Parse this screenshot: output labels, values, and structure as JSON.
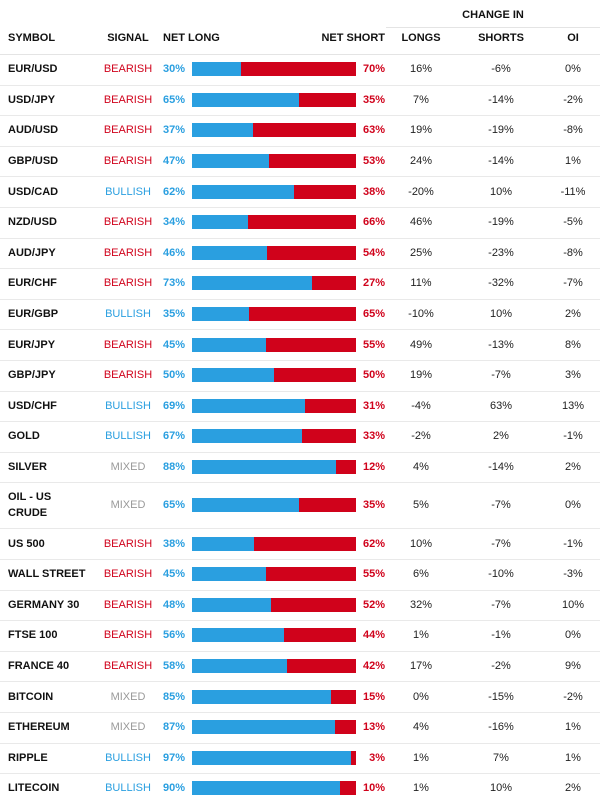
{
  "header": {
    "change_in": "CHANGE IN",
    "symbol": "SYMBOL",
    "signal": "SIGNAL",
    "net_long": "NET LONG",
    "net_short": "NET SHORT",
    "longs": "LONGS",
    "shorts": "SHORTS",
    "oi": "OI"
  },
  "colors": {
    "long": "#2a9fe0",
    "short": "#d0021b",
    "bearish": "#d0021b",
    "bullish": "#2a9fe0",
    "mixed": "#999999"
  },
  "rows": [
    {
      "symbol": "EUR/USD",
      "signal": "BEARISH",
      "net_long": "30%",
      "net_short": "70%",
      "long_fraction": 0.3,
      "longs": "16%",
      "shorts": "-6%",
      "oi": "0%"
    },
    {
      "symbol": "USD/JPY",
      "signal": "BEARISH",
      "net_long": "65%",
      "net_short": "35%",
      "long_fraction": 0.65,
      "longs": "7%",
      "shorts": "-14%",
      "oi": "-2%"
    },
    {
      "symbol": "AUD/USD",
      "signal": "BEARISH",
      "net_long": "37%",
      "net_short": "63%",
      "long_fraction": 0.37,
      "longs": "19%",
      "shorts": "-19%",
      "oi": "-8%"
    },
    {
      "symbol": "GBP/USD",
      "signal": "BEARISH",
      "net_long": "47%",
      "net_short": "53%",
      "long_fraction": 0.47,
      "longs": "24%",
      "shorts": "-14%",
      "oi": "1%"
    },
    {
      "symbol": "USD/CAD",
      "signal": "BULLISH",
      "net_long": "62%",
      "net_short": "38%",
      "long_fraction": 0.62,
      "longs": "-20%",
      "shorts": "10%",
      "oi": "-11%"
    },
    {
      "symbol": "NZD/USD",
      "signal": "BEARISH",
      "net_long": "34%",
      "net_short": "66%",
      "long_fraction": 0.34,
      "longs": "46%",
      "shorts": "-19%",
      "oi": "-5%"
    },
    {
      "symbol": "AUD/JPY",
      "signal": "BEARISH",
      "net_long": "46%",
      "net_short": "54%",
      "long_fraction": 0.46,
      "longs": "25%",
      "shorts": "-23%",
      "oi": "-8%"
    },
    {
      "symbol": "EUR/CHF",
      "signal": "BEARISH",
      "net_long": "73%",
      "net_short": "27%",
      "long_fraction": 0.73,
      "longs": "11%",
      "shorts": "-32%",
      "oi": "-7%"
    },
    {
      "symbol": "EUR/GBP",
      "signal": "BULLISH",
      "net_long": "35%",
      "net_short": "65%",
      "long_fraction": 0.35,
      "longs": "-10%",
      "shorts": "10%",
      "oi": "2%"
    },
    {
      "symbol": "EUR/JPY",
      "signal": "BEARISH",
      "net_long": "45%",
      "net_short": "55%",
      "long_fraction": 0.45,
      "longs": "49%",
      "shorts": "-13%",
      "oi": "8%"
    },
    {
      "symbol": "GBP/JPY",
      "signal": "BEARISH",
      "net_long": "50%",
      "net_short": "50%",
      "long_fraction": 0.5,
      "longs": "19%",
      "shorts": "-7%",
      "oi": "3%"
    },
    {
      "symbol": "USD/CHF",
      "signal": "BULLISH",
      "net_long": "69%",
      "net_short": "31%",
      "long_fraction": 0.69,
      "longs": "-4%",
      "shorts": "63%",
      "oi": "13%"
    },
    {
      "symbol": "GOLD",
      "signal": "BULLISH",
      "net_long": "67%",
      "net_short": "33%",
      "long_fraction": 0.67,
      "longs": "-2%",
      "shorts": "2%",
      "oi": "-1%"
    },
    {
      "symbol": "SILVER",
      "signal": "MIXED",
      "net_long": "88%",
      "net_short": "12%",
      "long_fraction": 0.88,
      "longs": "4%",
      "shorts": "-14%",
      "oi": "2%"
    },
    {
      "symbol": "OIL - US CRUDE",
      "signal": "MIXED",
      "net_long": "65%",
      "net_short": "35%",
      "long_fraction": 0.65,
      "longs": "5%",
      "shorts": "-7%",
      "oi": "0%"
    },
    {
      "symbol": "US 500",
      "signal": "BEARISH",
      "net_long": "38%",
      "net_short": "62%",
      "long_fraction": 0.38,
      "longs": "10%",
      "shorts": "-7%",
      "oi": "-1%"
    },
    {
      "symbol": "WALL STREET",
      "signal": "BEARISH",
      "net_long": "45%",
      "net_short": "55%",
      "long_fraction": 0.45,
      "longs": "6%",
      "shorts": "-10%",
      "oi": "-3%"
    },
    {
      "symbol": "GERMANY 30",
      "signal": "BEARISH",
      "net_long": "48%",
      "net_short": "52%",
      "long_fraction": 0.48,
      "longs": "32%",
      "shorts": "-7%",
      "oi": "10%"
    },
    {
      "symbol": "FTSE 100",
      "signal": "BEARISH",
      "net_long": "56%",
      "net_short": "44%",
      "long_fraction": 0.56,
      "longs": "1%",
      "shorts": "-1%",
      "oi": "0%"
    },
    {
      "symbol": "FRANCE 40",
      "signal": "BEARISH",
      "net_long": "58%",
      "net_short": "42%",
      "long_fraction": 0.58,
      "longs": "17%",
      "shorts": "-2%",
      "oi": "9%"
    },
    {
      "symbol": "BITCOIN",
      "signal": "MIXED",
      "net_long": "85%",
      "net_short": "15%",
      "long_fraction": 0.85,
      "longs": "0%",
      "shorts": "-15%",
      "oi": "-2%"
    },
    {
      "symbol": "ETHEREUM",
      "signal": "MIXED",
      "net_long": "87%",
      "net_short": "13%",
      "long_fraction": 0.87,
      "longs": "4%",
      "shorts": "-16%",
      "oi": "1%"
    },
    {
      "symbol": "RIPPLE",
      "signal": "BULLISH",
      "net_long": "97%",
      "net_short": "3%",
      "long_fraction": 0.97,
      "longs": "1%",
      "shorts": "7%",
      "oi": "1%"
    },
    {
      "symbol": "LITECOIN",
      "signal": "BULLISH",
      "net_long": "90%",
      "net_short": "10%",
      "long_fraction": 0.9,
      "longs": "1%",
      "shorts": "10%",
      "oi": "2%"
    }
  ]
}
